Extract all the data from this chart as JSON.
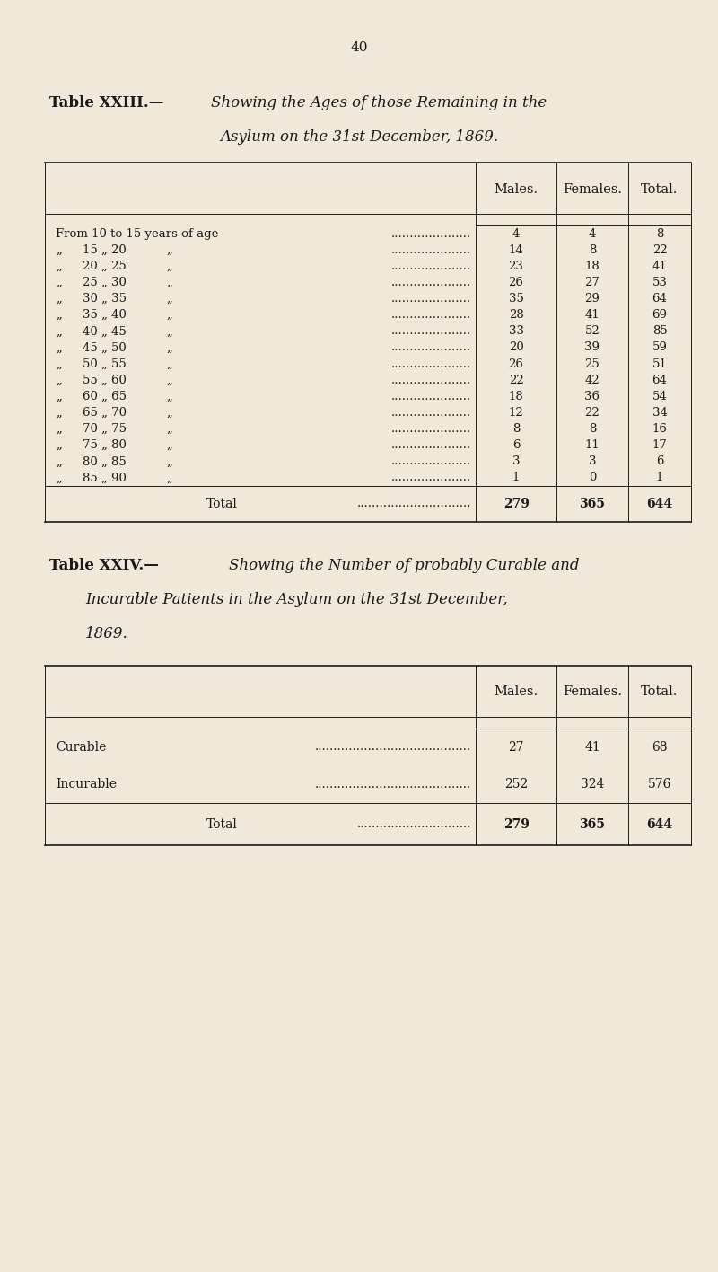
{
  "page_number": "40",
  "bg_color": "#f0e8d8",
  "text_color": "#1a1a1a",
  "table1_title_line1": "Table XXIII.—",
  "table1_title_italic": "Showing the Ages of those Remaining in the",
  "table1_title_line2_italic": "Asylum on the 31st December, 1869.",
  "table1_headers": [
    "Males.",
    "Females.",
    "Total."
  ],
  "table1_rows": [
    [
      "From 10 to 15 years of age",
      "4",
      "4",
      "8"
    ],
    [
      "„  15 „ 20  „",
      "14",
      "8",
      "22"
    ],
    [
      "„  20 „ 25  „",
      "23",
      "18",
      "41"
    ],
    [
      "„  25 „ 30  „",
      "26",
      "27",
      "53"
    ],
    [
      "„  30 „ 35  „",
      "35",
      "29",
      "64"
    ],
    [
      "„  35 „ 40  „",
      "28",
      "41",
      "69"
    ],
    [
      "„  40 „ 45  „",
      "33",
      "52",
      "85"
    ],
    [
      "„  45 „ 50  „",
      "20",
      "39",
      "59"
    ],
    [
      "„  50 „ 55  „",
      "26",
      "25",
      "51"
    ],
    [
      "„  55 „ 60  „",
      "22",
      "42",
      "64"
    ],
    [
      "„  60 „ 65  „",
      "18",
      "36",
      "54"
    ],
    [
      "„  65 „ 70  „",
      "12",
      "22",
      "34"
    ],
    [
      "„  70 „ 75  „",
      "8",
      "8",
      "16"
    ],
    [
      "„  75 „ 80  „",
      "6",
      "11",
      "17"
    ],
    [
      "„  80 „ 85  „",
      "3",
      "3",
      "6"
    ],
    [
      "„  85 „ 90  „",
      "1",
      "0",
      "1"
    ]
  ],
  "table1_total": [
    "Total",
    "279",
    "365",
    "644"
  ],
  "table2_title_line1": "Table XXIV.—",
  "table2_title_italic1": "Showing the Number of probably Curable and",
  "table2_title_italic2": "Incurable Patients in the Asylum on the 31st December,",
  "table2_title_italic3": "1869.",
  "table2_headers": [
    "Males.",
    "Females.",
    "Total."
  ],
  "table2_rows": [
    [
      "Curable",
      "27",
      "41",
      "68"
    ],
    [
      "Incurable",
      "252",
      "324",
      "576"
    ]
  ],
  "table2_total": [
    "Total",
    "279",
    "365",
    "644"
  ]
}
